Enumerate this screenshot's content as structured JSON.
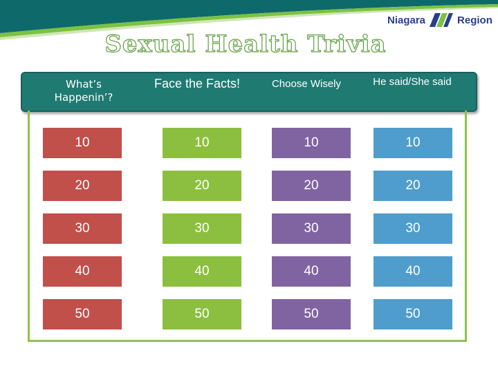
{
  "logo": {
    "left_word": "Niagara",
    "right_word": "Region"
  },
  "title": "Sexual Health Trivia",
  "categories": [
    {
      "label": "What’s Happenin’?"
    },
    {
      "label": "Face the Facts!"
    },
    {
      "label": "Choose Wisely"
    },
    {
      "label": "He said/She said"
    }
  ],
  "point_values": [
    "10",
    "20",
    "30",
    "40",
    "50"
  ],
  "colors": {
    "header": "#1f7a72",
    "column_1": "#c14f4a",
    "column_2": "#8cbf3f",
    "column_3": "#8064a2",
    "column_4": "#4f9dcc",
    "board_border": "#8dc14b"
  }
}
